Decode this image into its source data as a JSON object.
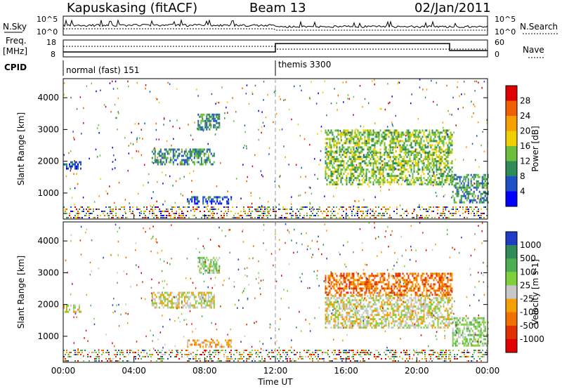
{
  "header": {
    "station": "Kapuskasing (fitACF)",
    "beam": "Beam 13",
    "date": "02/Jan/2011"
  },
  "param_panels": {
    "nsky_label": "N.Sky",
    "nsky_ticks": [
      "10^5",
      "10^0"
    ],
    "nsearch_label": "N.Search",
    "nsearch_ticks": [
      "10^5",
      "10^0"
    ],
    "freq_label_1": "Freq.",
    "freq_label_2": "[MHz]",
    "freq_ticks": [
      "18",
      "8"
    ],
    "nave_label": "Nave",
    "nave_ticks": [
      "60",
      "0"
    ],
    "cpid_label": "CPID",
    "cpid_segments": [
      {
        "label": "normal (fast) 151",
        "start_hour": 0,
        "end_hour": 12
      },
      {
        "label": "themis 3300",
        "start_hour": 12,
        "end_hour": 24
      }
    ]
  },
  "chart_data": [
    {
      "type": "heatmap",
      "name": "power",
      "ylabel": "Slant Range [km]",
      "xlabel": "",
      "yticks": [
        1000,
        2000,
        3000,
        4000
      ],
      "ylim": [
        180,
        4600
      ],
      "xlim_hours": [
        0,
        24
      ],
      "colorbar": {
        "label": "Power [dB]",
        "ticks": [
          "4",
          "8",
          "12",
          "16",
          "20",
          "24",
          "28"
        ],
        "colors": [
          "#0000ff",
          "#1e50c8",
          "#2e8b57",
          "#6cbf3c",
          "#f0d000",
          "#f5a000",
          "#f06000",
          "#e00000"
        ]
      },
      "echo_regions": [
        {
          "t0": 0.0,
          "t1": 1.0,
          "r0": 1750,
          "r1": 2000,
          "level": 1
        },
        {
          "t0": 5.0,
          "t1": 8.5,
          "r0": 1900,
          "r1": 2400,
          "level": 2
        },
        {
          "t0": 7.6,
          "t1": 8.8,
          "r0": 3000,
          "r1": 3500,
          "level": 2
        },
        {
          "t0": 7.0,
          "t1": 9.5,
          "r0": 650,
          "r1": 900,
          "level": 1
        },
        {
          "t0": 14.8,
          "t1": 22.0,
          "r0": 1300,
          "r1": 2300,
          "level": 3
        },
        {
          "t0": 14.8,
          "t1": 22.0,
          "r0": 2300,
          "r1": 3000,
          "level": 3
        },
        {
          "t0": 22.0,
          "t1": 24.0,
          "r0": 700,
          "r1": 1600,
          "level": 2
        }
      ]
    },
    {
      "type": "heatmap",
      "name": "velocity",
      "ylabel": "Slant Range [km]",
      "xlabel": "Time UT",
      "yticks": [
        1000,
        2000,
        3000,
        4000
      ],
      "ylim": [
        180,
        4600
      ],
      "xticks": [
        "00:00",
        "04:00",
        "08:00",
        "12:00",
        "16:00",
        "20:00",
        "00:00"
      ],
      "xlim_hours": [
        0,
        24
      ],
      "colorbar": {
        "label": "Velocity [m s-1]",
        "ticks": [
          "1000",
          "500",
          "100",
          "25",
          "-25",
          "-100",
          "-500",
          "-1000"
        ],
        "colors": [
          "#1e3cc8",
          "#2e8b57",
          "#4caf50",
          "#7fd13b",
          "#c8c8c8",
          "#f5a000",
          "#f07000",
          "#e03000",
          "#e00000"
        ]
      },
      "echo_regions": [
        {
          "t0": 0.0,
          "t1": 1.0,
          "r0": 1750,
          "r1": 2000,
          "level": 4
        },
        {
          "t0": 5.0,
          "t1": 8.5,
          "r0": 1900,
          "r1": 2400,
          "level": 4
        },
        {
          "t0": 7.6,
          "t1": 8.8,
          "r0": 3000,
          "r1": 3500,
          "level": 3
        },
        {
          "t0": 7.0,
          "t1": 9.5,
          "r0": 650,
          "r1": 900,
          "level": 5
        },
        {
          "t0": 14.8,
          "t1": 22.0,
          "r0": 1300,
          "r1": 2300,
          "level": 4
        },
        {
          "t0": 14.8,
          "t1": 22.0,
          "r0": 2300,
          "r1": 3000,
          "level": 6
        },
        {
          "t0": 22.0,
          "t1": 24.0,
          "r0": 700,
          "r1": 1600,
          "level": 3
        }
      ]
    }
  ]
}
